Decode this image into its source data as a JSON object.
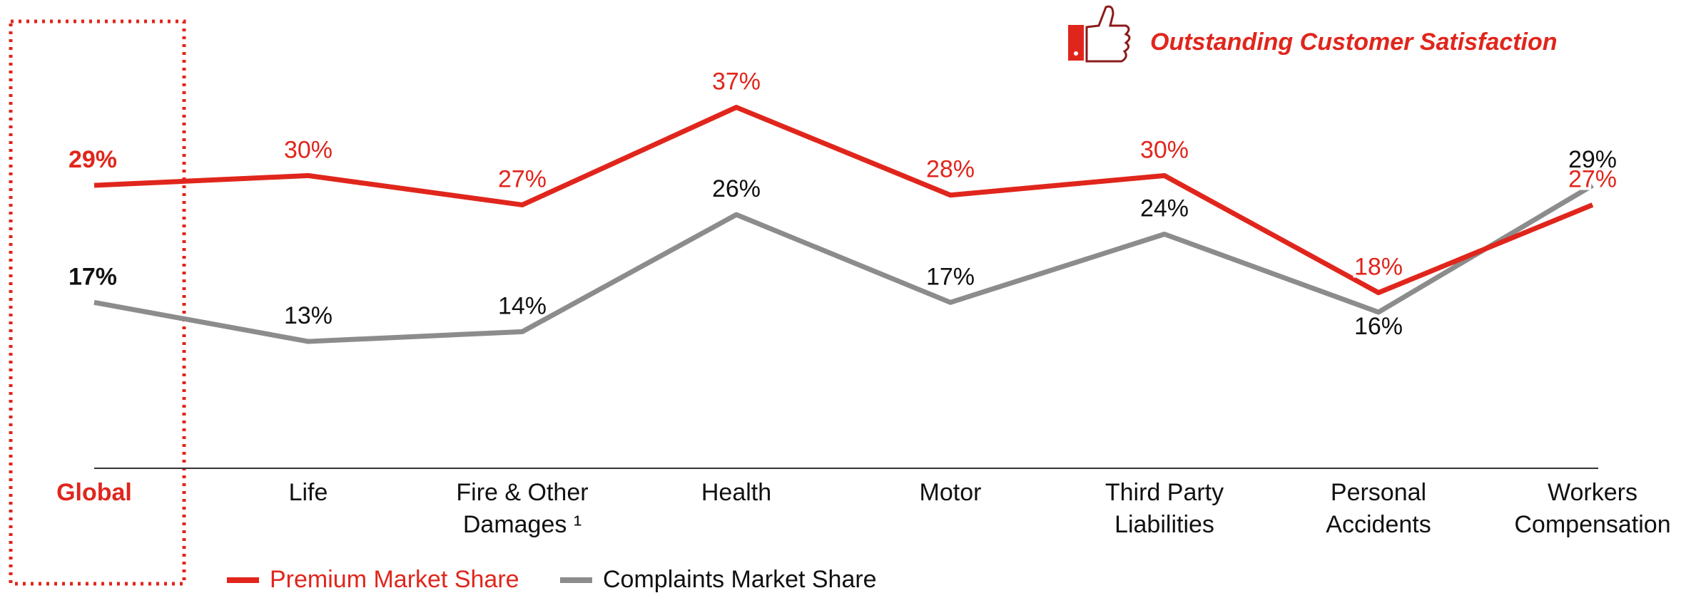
{
  "chart_data": {
    "type": "line",
    "annotation": "Outstanding Customer Satisfaction",
    "categories": [
      [
        "Global"
      ],
      [
        "Life"
      ],
      [
        "Fire & Other",
        "Damages ¹"
      ],
      [
        "Health"
      ],
      [
        "Motor"
      ],
      [
        "Third Party",
        "Liabilities"
      ],
      [
        "Personal",
        "Accidents"
      ],
      [
        "Workers",
        "Compensation"
      ]
    ],
    "series": [
      {
        "name": "Premium Market Share",
        "color": "#e0261c",
        "values": [
          29,
          30,
          27,
          37,
          28,
          30,
          18,
          27
        ],
        "value_labels": [
          "29%",
          "30%",
          "27%",
          "37%",
          "28%",
          "30%",
          "18%",
          "27%"
        ]
      },
      {
        "name": "Complaints Market Share",
        "color": "#8c8c8c",
        "values": [
          17,
          13,
          14,
          26,
          17,
          24,
          16,
          29
        ],
        "value_labels": [
          "17%",
          "13%",
          "14%",
          "26%",
          "17%",
          "24%",
          "16%",
          "29%"
        ]
      }
    ],
    "ylim": [
      0,
      48
    ]
  }
}
